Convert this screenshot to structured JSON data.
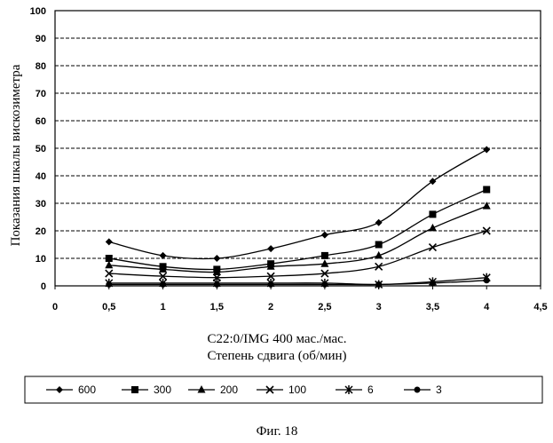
{
  "caption": "Фиг. 18",
  "chart_data": {
    "type": "line",
    "title": "",
    "ylabel": "Показания шкалы вискозиметра",
    "xlabel_line1": "C22:0/IMG 400 мас./мас.",
    "xlabel_line2": "Степень сдвига (об/мин)",
    "xlim": [
      0,
      4.5
    ],
    "ylim": [
      0,
      100
    ],
    "xticks": [
      "0",
      "0,5",
      "1",
      "1,5",
      "2",
      "2,5",
      "3",
      "3,5",
      "4",
      "4,5"
    ],
    "yticks": [
      "0",
      "10",
      "20",
      "30",
      "40",
      "50",
      "60",
      "70",
      "80",
      "90",
      "100"
    ],
    "grid": "horizontal dashed",
    "legend_position": "bottom",
    "x": [
      0.5,
      1,
      1.5,
      2,
      2.5,
      3,
      3.5,
      4
    ],
    "series": [
      {
        "name": "600",
        "marker": "diamond",
        "values": [
          16,
          11,
          10,
          13.5,
          18.5,
          23,
          38,
          49.5
        ]
      },
      {
        "name": "300",
        "marker": "square",
        "values": [
          10,
          7,
          6,
          8,
          11,
          15,
          26,
          35
        ]
      },
      {
        "name": "200",
        "marker": "triangle",
        "values": [
          7.5,
          6,
          5,
          7,
          8,
          11,
          21,
          29
        ]
      },
      {
        "name": "100",
        "marker": "x",
        "values": [
          4.5,
          3.5,
          3,
          3.5,
          4.5,
          7,
          14,
          20
        ]
      },
      {
        "name": "6",
        "marker": "asterisk",
        "values": [
          1,
          1,
          1,
          1,
          1,
          0.5,
          1.5,
          3
        ]
      },
      {
        "name": "3",
        "marker": "circle",
        "values": [
          0.5,
          0.5,
          0.5,
          0.5,
          0.5,
          0.5,
          1,
          2
        ]
      }
    ]
  }
}
